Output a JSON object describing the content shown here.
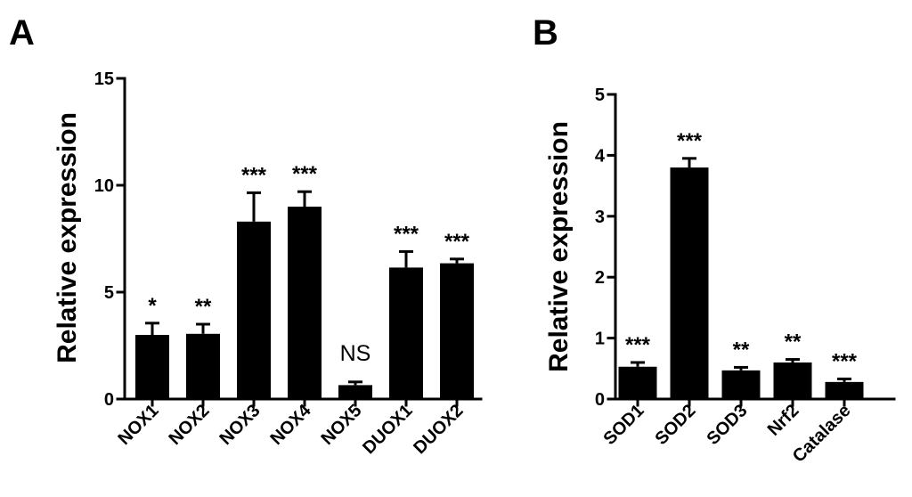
{
  "chart_data": [
    {
      "panel": "A",
      "type": "bar",
      "title": "",
      "ylabel": "Relative expression",
      "xlabel": "",
      "ylim": [
        0,
        15
      ],
      "yticks": [
        0,
        5,
        10,
        15
      ],
      "ytick_labels": [
        "0",
        "5",
        "10",
        "15"
      ],
      "categories": [
        "NOX1",
        "NOX2",
        "NOX3",
        "NOX4",
        "NOX5",
        "DUOX1",
        "DUOX2"
      ],
      "values": [
        3.0,
        3.05,
        8.3,
        9.0,
        0.65,
        6.15,
        6.35
      ],
      "errors": [
        0.55,
        0.45,
        1.35,
        0.7,
        0.15,
        0.75,
        0.2
      ],
      "significance": [
        "*",
        "**",
        "***",
        "***",
        "NS",
        "***",
        "***"
      ],
      "bar_color": "#000000"
    },
    {
      "panel": "B",
      "type": "bar",
      "title": "",
      "ylabel": "Relative expression",
      "xlabel": "",
      "ylim": [
        0,
        5
      ],
      "yticks": [
        0,
        1,
        2,
        3,
        4,
        5
      ],
      "ytick_labels": [
        "0",
        "1",
        "2",
        "3",
        "4",
        "5"
      ],
      "categories": [
        "SOD1",
        "SOD2",
        "SOD3",
        "Nrf2",
        "Catalase"
      ],
      "values": [
        0.53,
        3.8,
        0.47,
        0.6,
        0.28
      ],
      "errors": [
        0.07,
        0.15,
        0.05,
        0.05,
        0.05
      ],
      "significance": [
        "***",
        "***",
        "**",
        "**",
        "***"
      ],
      "bar_color": "#000000"
    }
  ]
}
